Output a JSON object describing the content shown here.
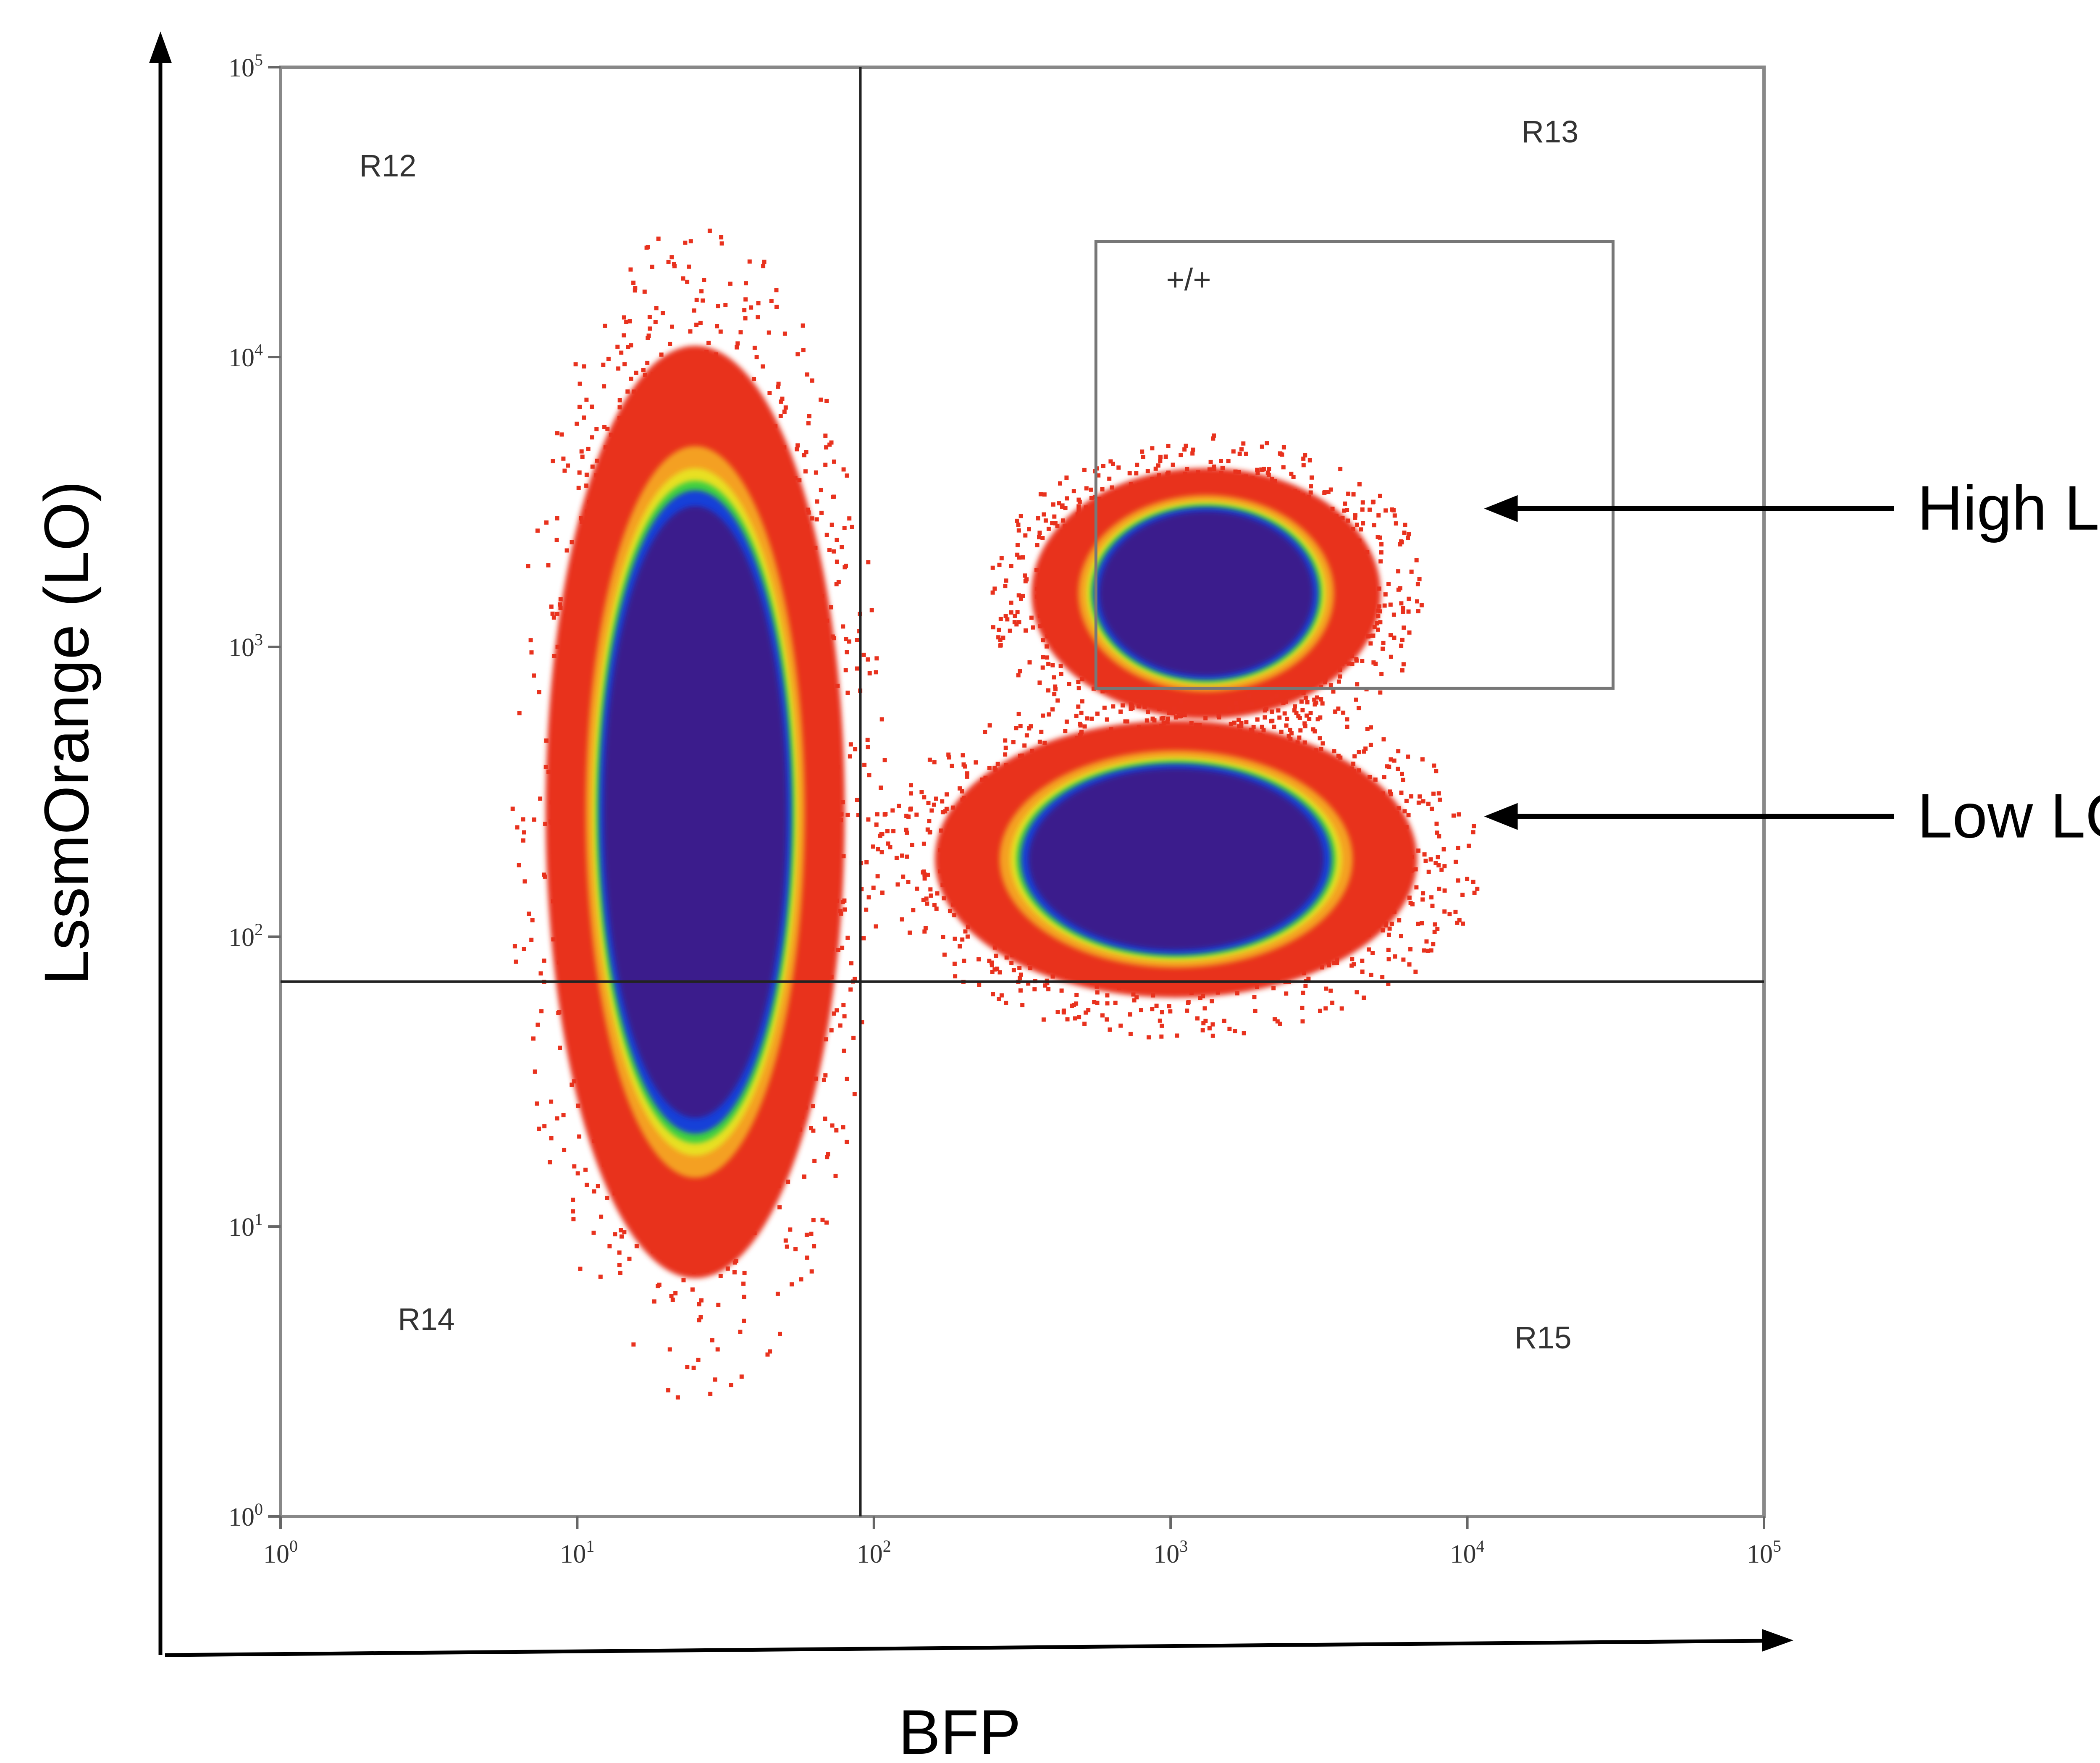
{
  "chart_data": {
    "type": "scatter",
    "subtype": "flow-cytometry density dot plot",
    "xlabel": "BFP",
    "ylabel": "LssmOrange (LO)",
    "xscale": "log",
    "yscale": "log",
    "xlim": [
      1,
      100000
    ],
    "ylim": [
      1,
      100000
    ],
    "x_ticks": [
      {
        "base": "10",
        "exp": "0",
        "value": 1
      },
      {
        "base": "10",
        "exp": "1",
        "value": 10
      },
      {
        "base": "10",
        "exp": "2",
        "value": 100
      },
      {
        "base": "10",
        "exp": "3",
        "value": 1000
      },
      {
        "base": "10",
        "exp": "4",
        "value": 10000
      },
      {
        "base": "10",
        "exp": "5",
        "value": 100000
      }
    ],
    "y_ticks": [
      {
        "base": "10",
        "exp": "0",
        "value": 1
      },
      {
        "base": "10",
        "exp": "1",
        "value": 10
      },
      {
        "base": "10",
        "exp": "2",
        "value": 100
      },
      {
        "base": "10",
        "exp": "3",
        "value": 1000
      },
      {
        "base": "10",
        "exp": "4",
        "value": 10000
      },
      {
        "base": "10",
        "exp": "5",
        "value": 100000
      }
    ],
    "quadrant_gate": {
      "x": 90,
      "y": 70
    },
    "regions": [
      {
        "label": "R12",
        "x": 2.3,
        "y": 42000
      },
      {
        "label": "R13",
        "x": 19000,
        "y": 55000
      },
      {
        "label": "R14",
        "x": 3.1,
        "y": 4.4
      },
      {
        "label": "R15",
        "x": 18000,
        "y": 3.8
      }
    ],
    "gate_box": {
      "label": "+/+",
      "label_x": 1150,
      "label_y": 17000,
      "x": [
        560,
        31000
      ],
      "y": [
        720,
        25000
      ]
    },
    "populations": [
      {
        "x": [
          12,
          52
        ],
        "y": [
          22,
          3300
        ]
      },
      {
        "x": [
          560,
          3100
        ],
        "y": [
          780,
          3000
        ]
      },
      {
        "x": [
          320,
          3400
        ],
        "y": [
          88,
          390
        ]
      }
    ],
    "annotations": [
      {
        "text": "High LO",
        "x": 10000,
        "y": 3000
      },
      {
        "text": "Low LO",
        "x": 10000,
        "y": 260
      }
    ],
    "density_colors": [
      "#e8321e",
      "#f4a020",
      "#e8e020",
      "#40d040",
      "#1840d8",
      "#3a1c8c"
    ],
    "grid": false
  }
}
